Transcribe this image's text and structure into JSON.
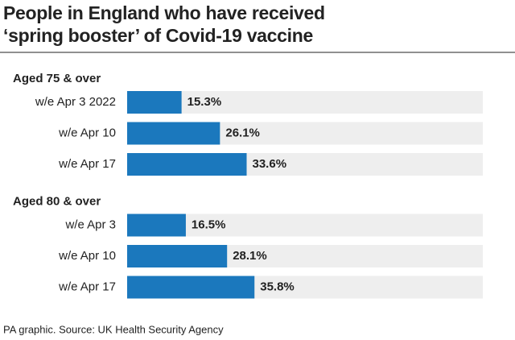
{
  "chart_data": {
    "type": "bar",
    "title": [
      "People in England who have received",
      "‘spring booster’ of Covid-19 vaccine"
    ],
    "groups": [
      {
        "name": "Aged 75 & over",
        "categories": [
          "w/e Apr 3 2022",
          "w/e Apr 10",
          "w/e Apr 17"
        ],
        "values": [
          15.3,
          26.1,
          33.6
        ],
        "value_labels": [
          "15.3%",
          "26.1%",
          "33.6%"
        ]
      },
      {
        "name": "Aged 80 & over",
        "categories": [
          "w/e Apr 3",
          "w/e Apr 10",
          "w/e Apr 17"
        ],
        "values": [
          16.5,
          28.1,
          35.8
        ],
        "value_labels": [
          "16.5%",
          "28.1%",
          "35.8%"
        ]
      }
    ],
    "xlim": [
      0,
      100
    ],
    "color": "#1b78bd",
    "track_color": "#eeeeee",
    "source": "PA graphic. Source: UK Health Security Agency"
  }
}
